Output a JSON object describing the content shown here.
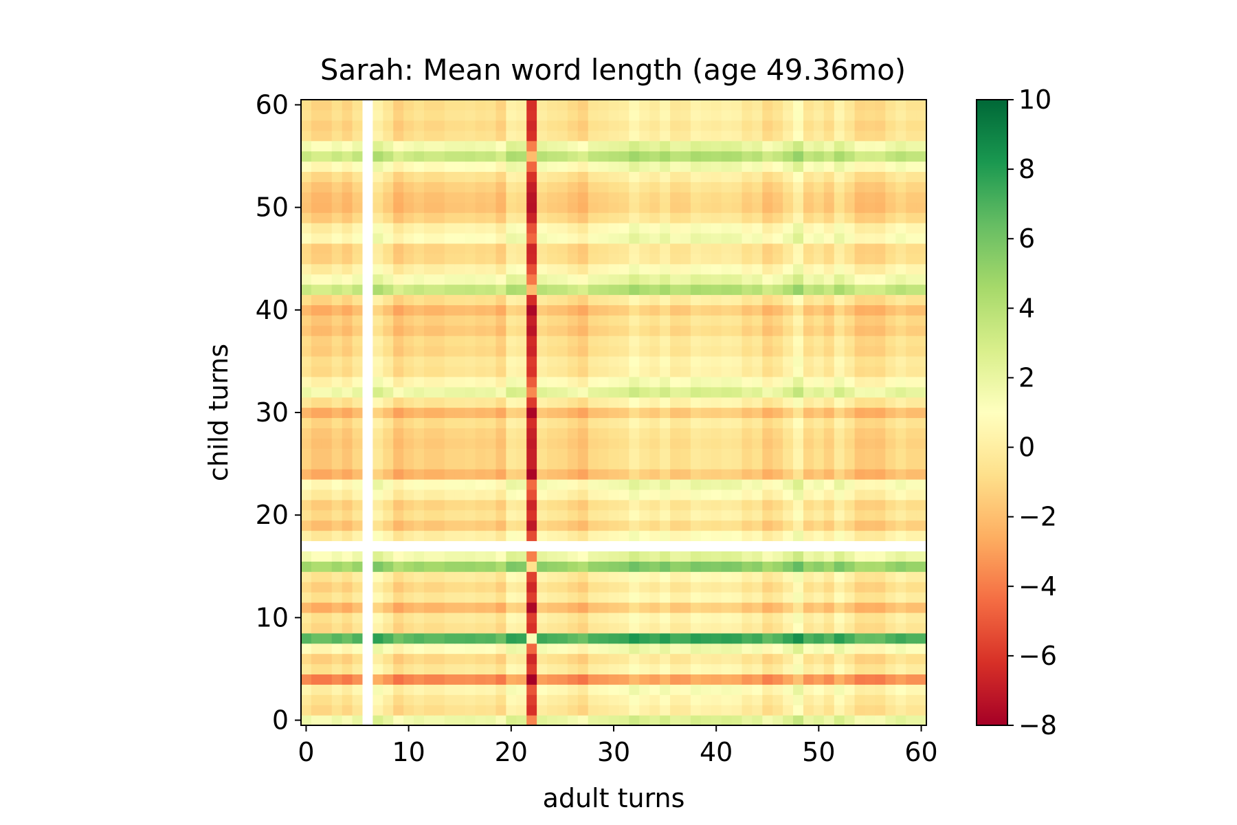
{
  "chart_data": {
    "type": "heatmap",
    "title": "Sarah: Mean word length (age 49.36mo)",
    "xlabel": "adult turns",
    "ylabel": "child turns",
    "xlim": [
      -0.5,
      60.5
    ],
    "ylim": [
      -0.5,
      60.5
    ],
    "x_ticks": [
      0,
      10,
      20,
      30,
      40,
      50,
      60
    ],
    "y_ticks": [
      0,
      10,
      20,
      30,
      40,
      50,
      60
    ],
    "x_tick_labels": [
      "0",
      "10",
      "20",
      "30",
      "40",
      "50",
      "60"
    ],
    "y_tick_labels": [
      "0",
      "10",
      "20",
      "30",
      "40",
      "50",
      "60"
    ],
    "colorbar": {
      "colormap": "RdYlGn",
      "vmin": -8,
      "vmax": 10,
      "ticks": [
        10,
        8,
        6,
        4,
        2,
        0,
        -2,
        -4,
        -6,
        -8
      ],
      "tick_labels": [
        "10",
        "8",
        "6",
        "4",
        "2",
        "0",
        "−2",
        "−4",
        "−6",
        "−8"
      ]
    },
    "n_rows": 61,
    "n_cols": 61,
    "structure": "additive: value(child_turn, adult_turn) = row_effect[child_turn] + col_effect[adult_turn]; null entries are blank (white) cells",
    "row_effect": [
      1.8,
      -0.7,
      -0.3,
      0.4,
      -3.6,
      -0.3,
      -1.0,
      0.9,
      6.8,
      -0.7,
      -0.3,
      -2.2,
      -0.3,
      -1.0,
      -0.2,
      4.8,
      1.6,
      null,
      0.1,
      -1.6,
      -0.6,
      -1.1,
      0.2,
      1.0,
      -2.3,
      -1.3,
      -1.3,
      -1.5,
      -1.3,
      -0.8,
      -2.3,
      -0.4,
      1.9,
      0.6,
      -0.6,
      -0.4,
      -1.1,
      -0.9,
      -1.7,
      -1.3,
      -2.2,
      -0.8,
      3.4,
      1.4,
      0.2,
      -1.0,
      -1.1,
      0.9,
      0.3,
      -1.2,
      -1.9,
      -1.8,
      -1.4,
      -0.7,
      0.9,
      3.4,
      1.6,
      -0.7,
      -1.0,
      -0.6,
      -0.8
    ],
    "col_effect": [
      0.0,
      -0.5,
      -0.5,
      0.0,
      -0.5,
      0.2,
      null,
      1.0,
      0.3,
      -0.7,
      -0.2,
      0.1,
      -0.2,
      -0.2,
      0.1,
      0.1,
      0.2,
      0.0,
      0.1,
      -0.5,
      1.0,
      0.8,
      -5.5,
      0.6,
      0.3,
      0.2,
      -0.2,
      -0.6,
      0.3,
      0.4,
      0.6,
      0.7,
      1.4,
      0.9,
      0.6,
      1.2,
      0.4,
      0.5,
      1.1,
      0.9,
      0.8,
      1.0,
      0.9,
      0.3,
      0.6,
      -0.3,
      0.1,
      0.8,
      1.7,
      0.2,
      0.6,
      0.0,
      1.1,
      0.4,
      -0.4,
      -0.3,
      -0.4,
      0.2,
      0.6,
      0.2,
      0.2
    ]
  }
}
